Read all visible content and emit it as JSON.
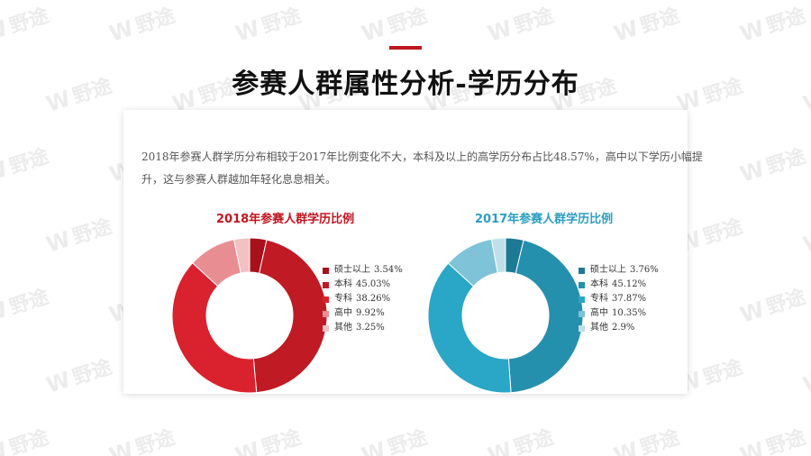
{
  "page": {
    "title": "参赛人群属性分析-学历分布",
    "accent_color": "#c0161f",
    "watermark_text": "野途"
  },
  "description": "2018年参赛人群学历分布相较于2017年比例变化不大，本科及以上的高学历分布占比48.57%，高中以下学历小幅提升，这与参赛人群越加年轻化息息相关。",
  "chart_data": [
    {
      "type": "pie",
      "donut": true,
      "title": "2018年参赛人群学历比例",
      "title_color": "#c0161f",
      "legend_position": "right",
      "slices": [
        {
          "label": "硕士以上",
          "value": 3.54,
          "display": "3.54%",
          "color": "#a8101c"
        },
        {
          "label": "本科",
          "value": 45.03,
          "display": "45.03%",
          "color": "#c01a24"
        },
        {
          "label": "专科",
          "value": 38.26,
          "display": "38.26%",
          "color": "#d9222e"
        },
        {
          "label": "高中",
          "value": 9.92,
          "display": "9.92%",
          "color": "#e88e92"
        },
        {
          "label": "其他",
          "value": 3.25,
          "display": "3.25%",
          "color": "#f2c1c3"
        }
      ]
    },
    {
      "type": "pie",
      "donut": true,
      "title": "2017年参赛人群学历比例",
      "title_color": "#2b9ec1",
      "legend_position": "right",
      "slices": [
        {
          "label": "硕士以上",
          "value": 3.76,
          "display": "3.76%",
          "color": "#1d7a94"
        },
        {
          "label": "本科",
          "value": 45.12,
          "display": "45.12%",
          "color": "#2590ad"
        },
        {
          "label": "专科",
          "value": 37.87,
          "display": "37.87%",
          "color": "#2aa6c6"
        },
        {
          "label": "高中",
          "value": 10.35,
          "display": "10.35%",
          "color": "#7fc3d8"
        },
        {
          "label": "其他",
          "value": 2.9,
          "display": "2.9%",
          "color": "#bfe0ea"
        }
      ]
    }
  ]
}
